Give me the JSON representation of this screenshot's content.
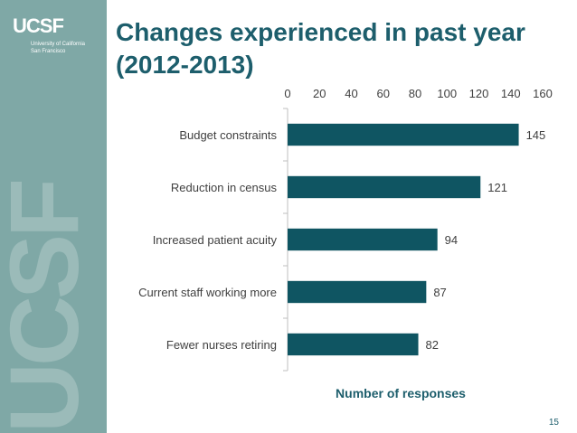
{
  "slide": {
    "title": "Changes experienced in past year (2012-2013)",
    "page_number": "15",
    "logo_text": "UCSF",
    "logo_subtitle_1": "University of California",
    "logo_subtitle_2": "San Francisco",
    "watermark_text": "UCSF"
  },
  "colors": {
    "bar": "#0f5562",
    "title": "#1d5e6c",
    "sidebar": "#7fa8a6",
    "axis": "#bfbfbf",
    "text": "#404040"
  },
  "chart_data": {
    "type": "bar",
    "orientation": "horizontal",
    "categories": [
      "Budget constraints",
      "Reduction in census",
      "Increased patient acuity",
      "Current staff working more",
      "Fewer nurses retiring"
    ],
    "values": [
      145,
      121,
      94,
      87,
      82
    ],
    "xlabel": "Number of responses",
    "ylabel": "",
    "xlim": [
      0,
      160
    ],
    "xticks": [
      0,
      20,
      40,
      60,
      80,
      100,
      120,
      140,
      160
    ],
    "x_axis_position": "top",
    "data_labels": true,
    "legend": "none",
    "grid": false
  }
}
